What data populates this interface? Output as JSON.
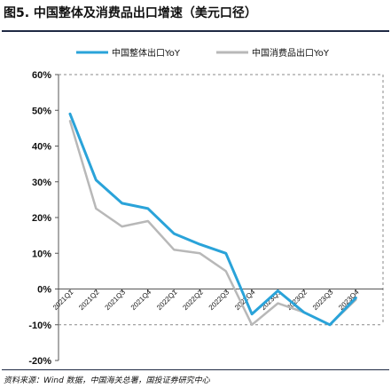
{
  "title": "图5. 中国整体及消费品出口增速（美元口径）",
  "source": "资料来源：Wind 数据，中国海关总署，国投证券研究中心",
  "colors": {
    "series_1": "#2aa3d9",
    "series_2": "#b8b8b8",
    "axis": "#555555",
    "rule": "#1f2a44"
  },
  "chart_data": {
    "type": "line",
    "x": [
      "2021Q1",
      "2021Q2",
      "2021Q3",
      "2021Q4",
      "2022Q1",
      "2022Q2",
      "2022Q3",
      "2022Q4",
      "2023Q1",
      "2023Q2",
      "2023Q3",
      "2023Q4"
    ],
    "series": [
      {
        "name": "中国整体出口YoY",
        "values": [
          49,
          30.5,
          24,
          22.5,
          15.5,
          12.5,
          10,
          -7,
          -0.5,
          -6.5,
          -10,
          -2.5
        ]
      },
      {
        "name": "中国消费品出口YoY",
        "values": [
          47,
          22.5,
          17.5,
          19,
          11,
          10,
          5,
          -10,
          -4,
          -6.5,
          -10,
          -3
        ]
      }
    ],
    "ylim": [
      -20,
      60
    ],
    "yticks": [
      -20,
      -10,
      0,
      10,
      20,
      30,
      40,
      50,
      60
    ],
    "ytick_labels": [
      "-20%",
      "-10%",
      "0%",
      "10%",
      "20%",
      "30%",
      "40%",
      "50%",
      "60%"
    ],
    "legend": "top",
    "grid": false
  }
}
